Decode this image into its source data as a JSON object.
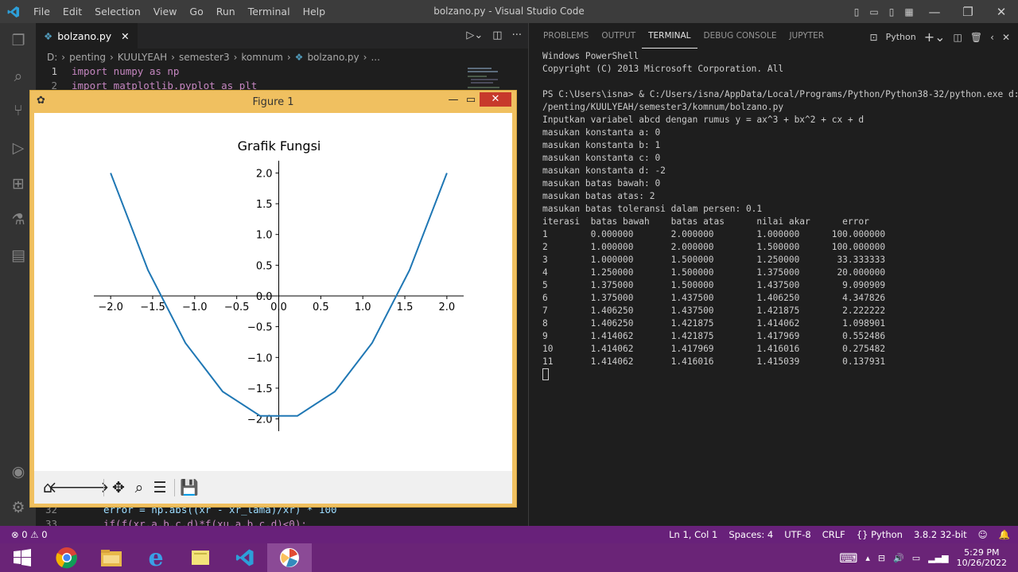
{
  "window": {
    "title": "bolzano.py - Visual Studio Code",
    "menu": [
      "File",
      "Edit",
      "Selection",
      "View",
      "Go",
      "Run",
      "Terminal",
      "Help"
    ]
  },
  "editor": {
    "tab": "bolzano.py",
    "breadcrumb": [
      "D:",
      "penting",
      "KUULYEAH",
      "semester3",
      "komnum",
      "bolzano.py",
      "..."
    ],
    "lines_top": [
      {
        "num": "1",
        "text": "import numpy as np"
      },
      {
        "num": "2",
        "text": "import matplotlib.pyplot as plt"
      }
    ],
    "lines_bottom": [
      {
        "num": "32",
        "text": "error = np.abs((xr - xr_lama)/xr) * 100"
      },
      {
        "num": "33",
        "text": "if(f(xr,a,b,c,d)*f(xu,a,b,c,d)<0):"
      }
    ]
  },
  "panel": {
    "tabs": [
      "PROBLEMS",
      "OUTPUT",
      "TERMINAL",
      "DEBUG CONSOLE",
      "JUPYTER"
    ],
    "active_tab": "TERMINAL",
    "shell": "Python",
    "terminal_lines": [
      "Windows PowerShell",
      "Copyright (C) 2013 Microsoft Corporation. All",
      "",
      "PS C:\\Users\\isna> & C:/Users/isna/AppData/Local/Programs/Python/Python38-32/python.exe d:",
      "/penting/KUULYEAH/semester3/komnum/bolzano.py",
      "Inputkan variabel abcd dengan rumus y = ax^3 + bx^2 + cx + d",
      "masukan konstanta a: 0",
      "masukan konstanta b: 1",
      "masukan konstanta c: 0",
      "masukan konstanta d: -2",
      "masukan batas bawah: 0",
      "masukan batas atas: 2",
      "masukan batas toleransi dalam persen: 0.1",
      "iterasi  batas bawah    batas atas      nilai akar      error",
      "1        0.000000       2.000000        1.000000      100.000000",
      "2        1.000000       2.000000        1.500000      100.000000",
      "3        1.000000       1.500000        1.250000       33.333333",
      "4        1.250000       1.500000        1.375000       20.000000",
      "5        1.375000       1.500000        1.437500        9.090909",
      "6        1.375000       1.437500        1.406250        4.347826",
      "7        1.406250       1.437500        1.421875        2.222222",
      "8        1.406250       1.421875        1.414062        1.098901",
      "9        1.414062       1.421875        1.417969        0.552486",
      "10       1.414062       1.417969        1.416016        0.275482",
      "11       1.414062       1.416016        1.415039        0.137931"
    ]
  },
  "statusbar": {
    "problems": "⊗ 0 ⚠ 0",
    "position": "Ln 1, Col 1",
    "spaces": "Spaces: 4",
    "encoding": "UTF-8",
    "eol": "CRLF",
    "language": "{} Python",
    "interpreter": "3.8.2 32-bit"
  },
  "taskbar": {
    "time": "5:29 PM",
    "date": "10/26/2022"
  },
  "figure": {
    "title": "Figure 1"
  },
  "chart_data": {
    "type": "line",
    "title": "Grafik Fungsi",
    "x": [
      -2.0,
      -1.5556,
      -1.1111,
      -0.6667,
      -0.2222,
      0.2222,
      0.6667,
      1.1111,
      1.5556,
      2.0
    ],
    "y": [
      2.0,
      0.4198,
      -0.7654,
      -1.5556,
      -1.9506,
      -1.9506,
      -1.5556,
      -0.7654,
      0.4198,
      2.0
    ],
    "xlim": [
      -2.2,
      2.2
    ],
    "ylim": [
      -2.2,
      2.2
    ],
    "xticks": [
      "−2.0",
      "−1.5",
      "−1.0",
      "−0.5",
      "0.0",
      "0.5",
      "1.0",
      "1.5",
      "2.0"
    ],
    "xtick_values": [
      -2.0,
      -1.5,
      -1.0,
      -0.5,
      0.0,
      0.5,
      1.0,
      1.5,
      2.0
    ],
    "yticks": [
      "2.0",
      "1.5",
      "1.0",
      "0.5",
      "0.0",
      "−0.5",
      "−1.0",
      "−1.5",
      "−2.0"
    ],
    "ytick_values": [
      2.0,
      1.5,
      1.0,
      0.5,
      0.0,
      -0.5,
      -1.0,
      -1.5,
      -2.0
    ],
    "color": "#1f77b4",
    "grid": false
  }
}
